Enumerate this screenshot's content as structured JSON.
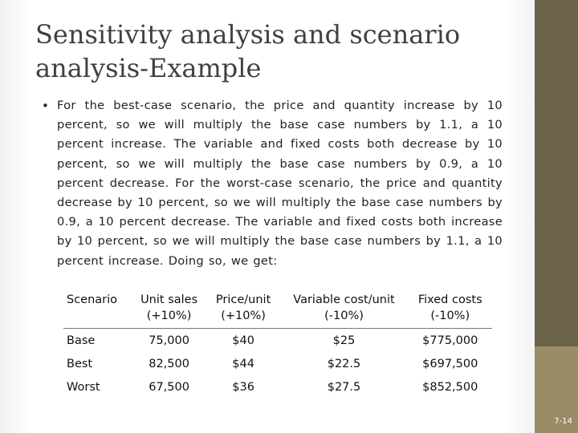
{
  "slide": {
    "title_line1": "Sensitivity analysis and scenario",
    "title_line2": "analysis-Example",
    "bullet_icon": "bullet-dot",
    "bullet_text": "For the best-case scenario, the price and quantity increase by 10 percent, so we will multiply the base case numbers by 1.1, a 10 percent increase. The variable and fixed costs both decrease by 10 percent, so we will multiply the base case numbers by 0.9, a 10 percent decrease. For the worst-case scenario, the price and quantity decrease by 10 percent, so we will multiply the base case numbers by 0.9, a 10 percent decrease. The variable and fixed costs both increase by 10 percent, so we will multiply the base case numbers by 1.1, a 10 percent increase. Doing so, we get:",
    "slide_number": "7-14"
  },
  "table": {
    "headers": [
      {
        "line1": "Scenario",
        "line2": ""
      },
      {
        "line1": "Unit sales",
        "line2": "(+10%)"
      },
      {
        "line1": "Price/unit",
        "line2": "(+10%)"
      },
      {
        "line1": "Variable cost/unit",
        "line2": "(-10%)"
      },
      {
        "line1": "Fixed costs",
        "line2": "(-10%)"
      }
    ],
    "rows": [
      [
        "Base",
        "75,000",
        "$40",
        "$25",
        "$775,000"
      ],
      [
        "Best",
        "82,500",
        "$44",
        "$22.5",
        "$697,500"
      ],
      [
        "Worst",
        "67,500",
        "$36",
        "$27.5",
        "$852,500"
      ]
    ]
  },
  "colors": {
    "sidebar_dark": "#6b6348",
    "sidebar_light": "#998c66",
    "title_text": "#404040"
  }
}
